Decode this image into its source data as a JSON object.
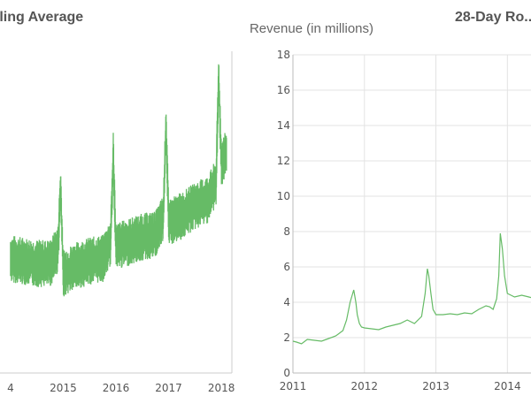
{
  "chart_data": [
    {
      "type": "line",
      "title": "...ling Average",
      "xlabel": "",
      "ylabel": "",
      "x_ticks": [
        "4",
        "2015",
        "2016",
        "2017",
        "2018"
      ],
      "xlim": [
        2013.8,
        2018.2
      ],
      "color": "#66bb66",
      "series": [
        {
          "x": [
            2014.0,
            2014.25,
            2014.5,
            2014.75,
            2014.9,
            2014.95,
            2015.0,
            2015.25,
            2015.5,
            2015.75,
            2015.9,
            2015.95,
            2016.0,
            2016.25,
            2016.5,
            2016.75,
            2016.9,
            2016.95,
            2017.0,
            2017.25,
            2017.5,
            2017.75,
            2017.9,
            2017.95,
            2018.0,
            2018.1
          ],
          "center": [
            0.48,
            0.47,
            0.46,
            0.46,
            0.52,
            0.78,
            0.42,
            0.45,
            0.47,
            0.48,
            0.55,
            0.92,
            0.53,
            0.55,
            0.57,
            0.58,
            0.65,
            1.05,
            0.63,
            0.66,
            0.7,
            0.73,
            0.8,
            1.24,
            0.88,
            0.92
          ],
          "half_range": [
            0.1,
            0.1,
            0.1,
            0.1,
            0.1,
            0.1,
            0.1,
            0.1,
            0.1,
            0.1,
            0.1,
            0.1,
            0.1,
            0.1,
            0.1,
            0.1,
            0.1,
            0.1,
            0.1,
            0.1,
            0.1,
            0.1,
            0.1,
            0.1,
            0.1,
            0.1
          ]
        }
      ]
    },
    {
      "type": "line",
      "title": "Revenue (in millions)",
      "xlabel": "",
      "ylabel": "",
      "ylim": [
        0,
        18
      ],
      "y_ticks": [
        0,
        2,
        4,
        6,
        8,
        10,
        12,
        14,
        16,
        18
      ],
      "x_ticks": [
        "2011",
        "2012",
        "2013",
        "2014"
      ],
      "grid": true,
      "color": "#66bb66",
      "series": [
        {
          "x": [
            2011.0,
            2011.05,
            2011.12,
            2011.2,
            2011.3,
            2011.4,
            2011.5,
            2011.6,
            2011.7,
            2011.75,
            2011.8,
            2011.85,
            2011.88,
            2011.9,
            2011.93,
            2011.96,
            2012.0,
            2012.1,
            2012.2,
            2012.3,
            2012.4,
            2012.5,
            2012.6,
            2012.7,
            2012.8,
            2012.85,
            2012.88,
            2012.9,
            2012.93,
            2012.96,
            2013.0,
            2013.1,
            2013.2,
            2013.3,
            2013.4,
            2013.5,
            2013.6,
            2013.7,
            2013.75,
            2013.8,
            2013.85,
            2013.88,
            2013.9,
            2013.93,
            2013.96,
            2014.0,
            2014.1,
            2014.2,
            2014.3,
            2014.4
          ],
          "y": [
            1.8,
            1.75,
            1.65,
            1.9,
            1.85,
            1.8,
            1.95,
            2.1,
            2.4,
            3.0,
            4.0,
            4.7,
            4.0,
            3.3,
            2.8,
            2.6,
            2.55,
            2.5,
            2.45,
            2.6,
            2.7,
            2.8,
            3.0,
            2.8,
            3.2,
            4.5,
            5.9,
            5.5,
            4.5,
            3.6,
            3.3,
            3.3,
            3.35,
            3.3,
            3.4,
            3.35,
            3.6,
            3.8,
            3.75,
            3.6,
            4.2,
            5.5,
            7.9,
            7.0,
            5.5,
            4.5,
            4.3,
            4.4,
            4.3,
            4.2
          ]
        }
      ]
    },
    {
      "type": "line",
      "title": "28-Day Ro..."
    }
  ]
}
